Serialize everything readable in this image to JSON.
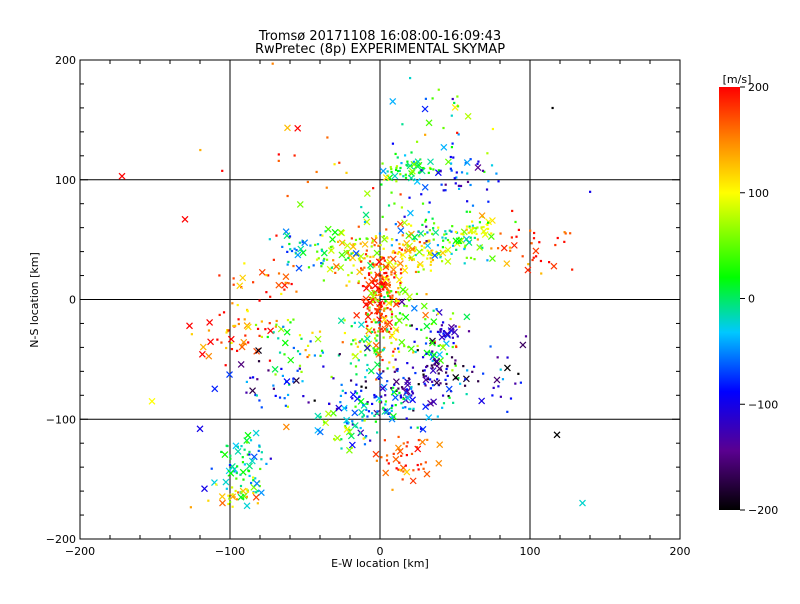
{
  "chart_data": {
    "type": "scatter",
    "title": "Tromsø 20171108 16:08:00-16:09:43",
    "subtitle": "RwPretec (8p) EXPERIMENTAL SKYMAP",
    "xlabel": "E-W location [km]",
    "ylabel": "N-S location [km]",
    "xlim": [
      -200,
      200
    ],
    "ylim": [
      -200,
      200
    ],
    "x_ticks": [
      "−200",
      "−100",
      "0",
      "100",
      "200"
    ],
    "y_ticks": [
      "−200",
      "−100",
      "0",
      "100",
      "200"
    ],
    "grid": true,
    "colorbar": {
      "unit": "[m/s]",
      "range": [
        -200,
        200
      ],
      "ticks": [
        "200",
        "100",
        "0",
        "−100",
        "−200"
      ],
      "colors": [
        "#000000",
        "#5a0090",
        "#0000ff",
        "#00c8ff",
        "#00ff00",
        "#ffff00",
        "#ff8000",
        "#ff0000"
      ]
    },
    "markers": {
      "dot": "small point (low power)",
      "cross": "x (high power)"
    },
    "clusters": [
      {
        "cx": 20,
        "cy": 110,
        "sx": 10,
        "sy": 6,
        "n": 55,
        "v": 10,
        "dv": 60
      },
      {
        "cx": 55,
        "cy": 100,
        "sx": 12,
        "sy": 10,
        "n": 40,
        "v": -80,
        "dv": 80
      },
      {
        "cx": 45,
        "cy": 50,
        "sx": 14,
        "sy": 10,
        "n": 70,
        "v": 20,
        "dv": 70
      },
      {
        "cx": 65,
        "cy": 60,
        "sx": 8,
        "sy": 6,
        "n": 30,
        "v": 90,
        "dv": 40
      },
      {
        "cx": 0,
        "cy": 35,
        "sx": 16,
        "sy": 10,
        "n": 90,
        "v": 130,
        "dv": 60
      },
      {
        "cx": 25,
        "cy": 40,
        "sx": 10,
        "sy": 8,
        "n": 50,
        "v": 100,
        "dv": 60
      },
      {
        "cx": -30,
        "cy": 40,
        "sx": 14,
        "sy": 10,
        "n": 50,
        "v": 60,
        "dv": 90
      },
      {
        "cx": -55,
        "cy": 40,
        "sx": 8,
        "sy": 8,
        "n": 25,
        "v": -40,
        "dv": 80
      },
      {
        "cx": 0,
        "cy": 0,
        "sx": 6,
        "sy": 22,
        "n": 160,
        "v": 180,
        "dv": 30
      },
      {
        "cx": 10,
        "cy": -5,
        "sx": 10,
        "sy": 12,
        "n": 60,
        "v": 70,
        "dv": 70
      },
      {
        "cx": -5,
        "cy": -40,
        "sx": 12,
        "sy": 12,
        "n": 60,
        "v": 50,
        "dv": 90
      },
      {
        "cx": 35,
        "cy": -35,
        "sx": 12,
        "sy": 14,
        "n": 60,
        "v": 0,
        "dv": 120
      },
      {
        "cx": 45,
        "cy": -25,
        "sx": 4,
        "sy": 4,
        "n": 18,
        "v": -110,
        "dv": 30
      },
      {
        "cx": 40,
        "cy": -60,
        "sx": 10,
        "sy": 10,
        "n": 40,
        "v": -150,
        "dv": 60
      },
      {
        "cx": 10,
        "cy": -75,
        "sx": 18,
        "sy": 10,
        "n": 80,
        "v": -110,
        "dv": 90
      },
      {
        "cx": 5,
        "cy": -90,
        "sx": 20,
        "sy": 10,
        "n": 70,
        "v": -40,
        "dv": 60
      },
      {
        "cx": -20,
        "cy": -110,
        "sx": 14,
        "sy": 10,
        "n": 40,
        "v": 20,
        "dv": 100
      },
      {
        "cx": 15,
        "cy": -135,
        "sx": 12,
        "sy": 12,
        "n": 45,
        "v": 170,
        "dv": 40
      },
      {
        "cx": -90,
        "cy": -140,
        "sx": 8,
        "sy": 14,
        "n": 70,
        "v": -10,
        "dv": 60
      },
      {
        "cx": -95,
        "cy": -165,
        "sx": 8,
        "sy": 6,
        "n": 25,
        "v": 110,
        "dv": 60
      },
      {
        "cx": -95,
        "cy": -30,
        "sx": 14,
        "sy": 12,
        "n": 45,
        "v": 170,
        "dv": 60
      },
      {
        "cx": -55,
        "cy": -40,
        "sx": 14,
        "sy": 14,
        "n": 45,
        "v": 40,
        "dv": 120
      },
      {
        "cx": -70,
        "cy": -70,
        "sx": 14,
        "sy": 14,
        "n": 40,
        "v": -90,
        "dv": 100
      },
      {
        "cx": -80,
        "cy": 10,
        "sx": 14,
        "sy": 12,
        "n": 30,
        "v": 160,
        "dv": 60
      },
      {
        "cx": 100,
        "cy": 45,
        "sx": 14,
        "sy": 14,
        "n": 35,
        "v": 170,
        "dv": 50
      },
      {
        "cx": 80,
        "cy": -60,
        "sx": 14,
        "sy": 20,
        "n": 25,
        "v": -120,
        "dv": 100
      },
      {
        "cx": 40,
        "cy": 150,
        "sx": 22,
        "sy": 20,
        "n": 25,
        "v": 20,
        "dv": 150
      },
      {
        "cx": -60,
        "cy": 110,
        "sx": 30,
        "sy": 30,
        "n": 20,
        "v": 150,
        "dv": 80
      },
      {
        "cx": 20,
        "cy": 70,
        "sx": 20,
        "sy": 15,
        "n": 40,
        "v": -20,
        "dv": 130
      }
    ],
    "extra_points": [
      {
        "x": -172,
        "y": 103,
        "v": 200,
        "m": "x"
      },
      {
        "x": -130,
        "y": 67,
        "v": 200,
        "m": "x"
      },
      {
        "x": -127,
        "y": -22,
        "v": 200,
        "m": "x"
      },
      {
        "x": -152,
        "y": -85,
        "v": 100,
        "m": "x"
      },
      {
        "x": -120,
        "y": -108,
        "v": -100,
        "m": "x"
      },
      {
        "x": -117,
        "y": -158,
        "v": -100,
        "m": "x"
      },
      {
        "x": -105,
        "y": -170,
        "v": 160,
        "m": "x"
      },
      {
        "x": 118,
        "y": -113,
        "v": -200,
        "m": "x"
      },
      {
        "x": 135,
        "y": -170,
        "v": -20,
        "m": "x"
      },
      {
        "x": 140,
        "y": 90,
        "v": -100,
        "m": "dot"
      },
      {
        "x": 115,
        "y": 160,
        "v": -200,
        "m": "dot"
      },
      {
        "x": 20,
        "y": 185,
        "v": -20,
        "m": "dot"
      }
    ]
  }
}
